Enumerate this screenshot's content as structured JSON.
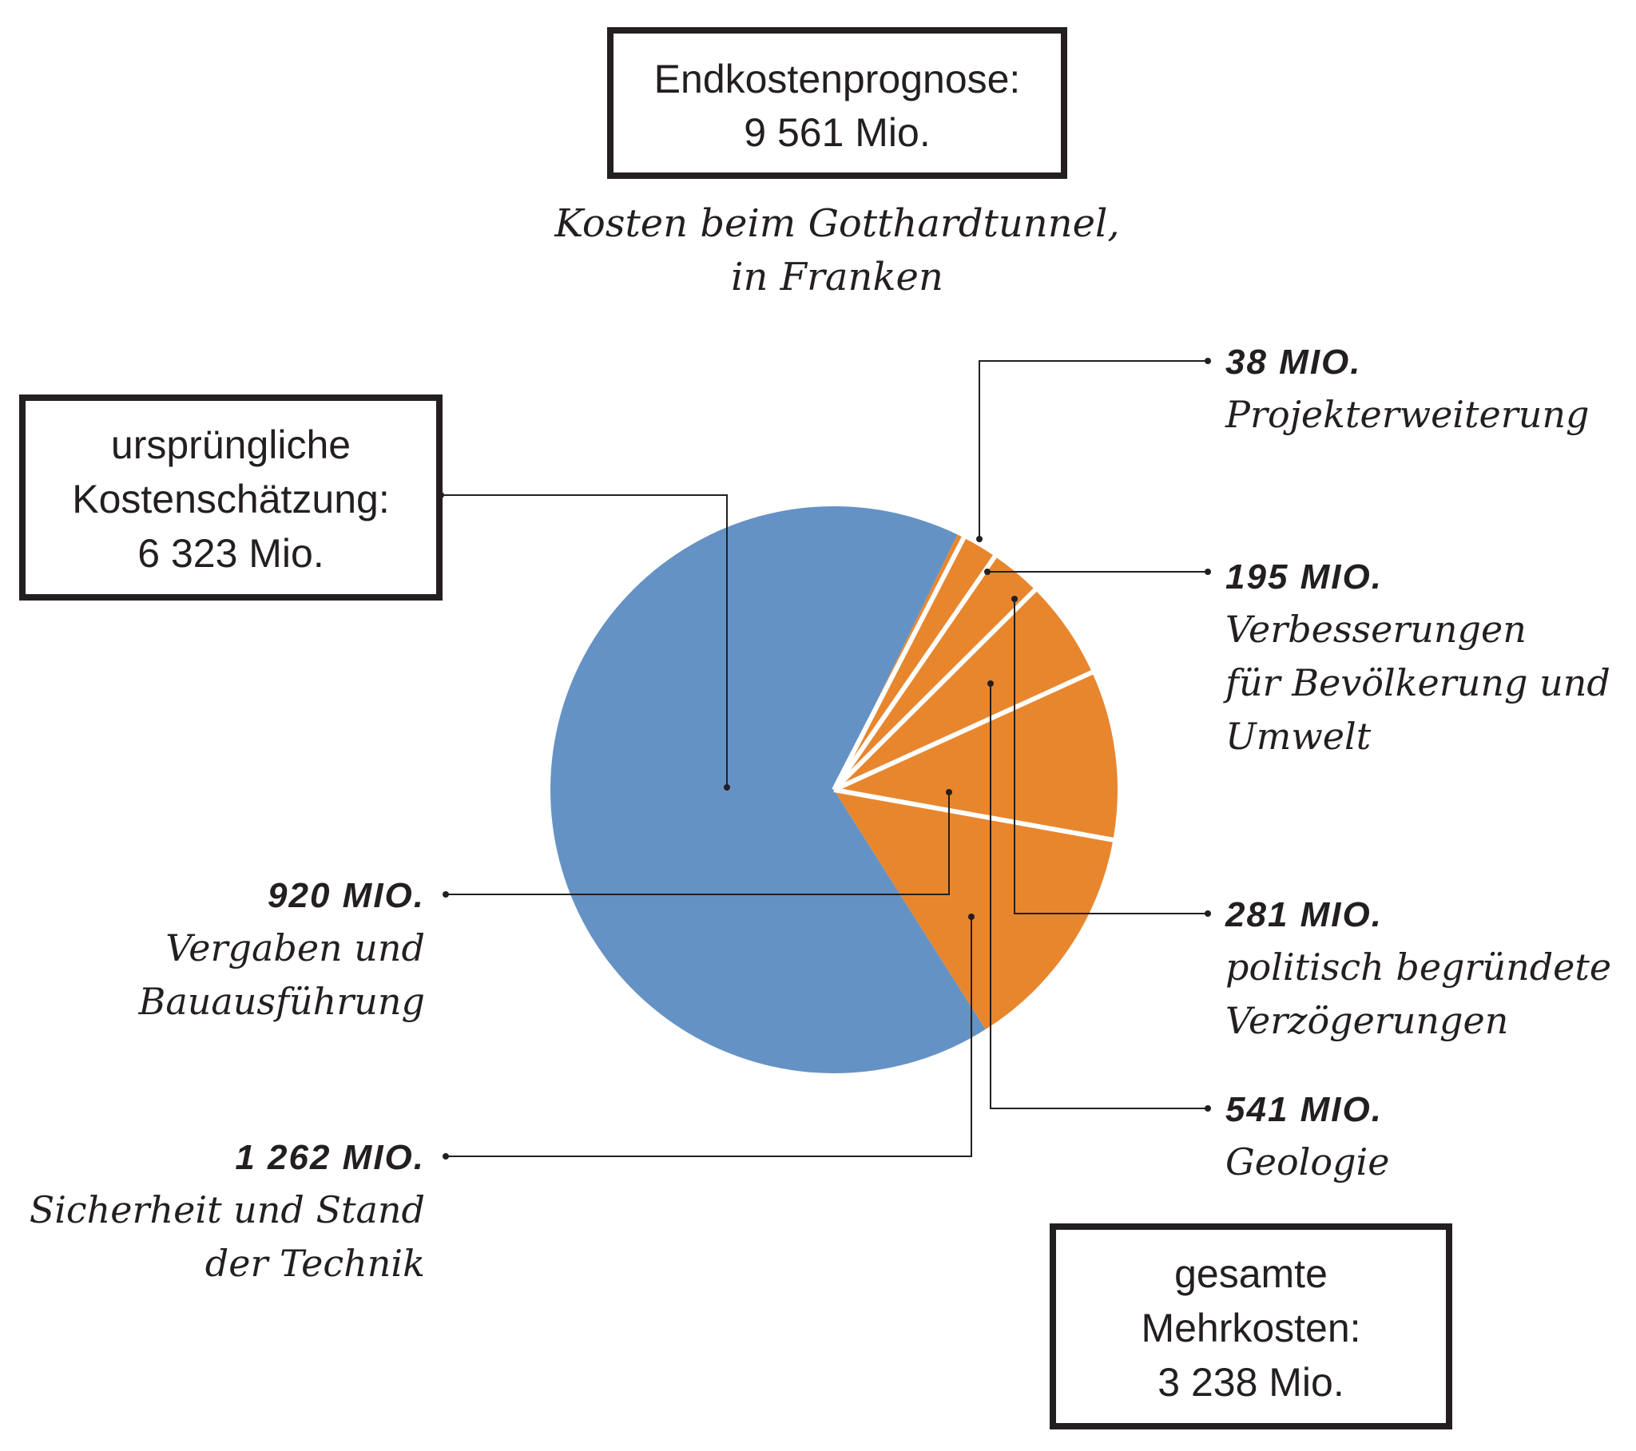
{
  "chart_data": {
    "type": "pie",
    "total_box": {
      "line1": "Endkostenprognose:",
      "line2": "9 561 Mio."
    },
    "caption": {
      "line1": "Kosten beim Gotthardtunnel,",
      "line2": "in Franken"
    },
    "base_box": {
      "line1": "ursprüngliche",
      "line2": "Kostenschätzung:",
      "line3": "6 323 Mio."
    },
    "extra_box": {
      "line1": "gesamte",
      "line2": "Mehrkosten:",
      "line3": "3 238 Mio."
    },
    "colors": {
      "base": "#6592c4",
      "extra": "#e8862e",
      "separator": "#ffffff"
    },
    "slices": [
      {
        "id": "base",
        "value": 6323,
        "color": "#6592c4"
      },
      {
        "id": "projekt",
        "value": 38,
        "color": "#e8862e",
        "value_label": "38 MIO.",
        "label_lines": [
          "Projekterweiterung"
        ]
      },
      {
        "id": "verbesserungen",
        "value": 195,
        "color": "#e8862e",
        "value_label": "195 MIO.",
        "label_lines": [
          "Verbesserungen",
          "für Bevölkerung und",
          "Umwelt"
        ]
      },
      {
        "id": "politisch",
        "value": 281,
        "color": "#e8862e",
        "value_label": "281 MIO.",
        "label_lines": [
          "politisch begründete",
          "Verzögerungen"
        ]
      },
      {
        "id": "geologie",
        "value": 541,
        "color": "#e8862e",
        "value_label": "541 MIO.",
        "label_lines": [
          "Geologie"
        ]
      },
      {
        "id": "vergaben",
        "value": 920,
        "color": "#e8862e",
        "value_label": "920 MIO.",
        "label_lines": [
          "Vergaben und",
          "Bauausführung"
        ]
      },
      {
        "id": "sicherheit",
        "value": 1262,
        "color": "#e8862e",
        "value_label": "1 262 MIO.",
        "label_lines": [
          "Sicherheit und Stand",
          "der Technik"
        ]
      }
    ]
  }
}
